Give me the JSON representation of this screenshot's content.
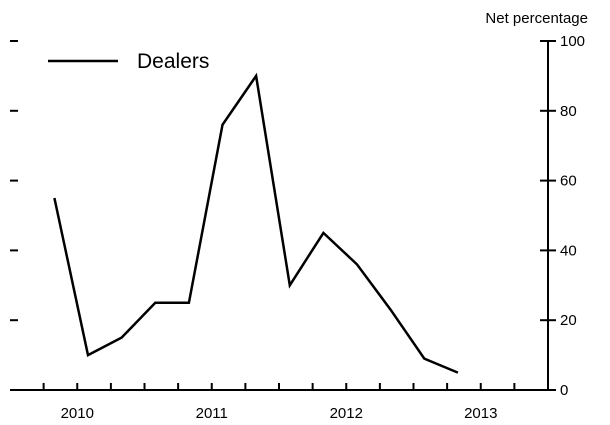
{
  "chart_data": {
    "type": "line",
    "ylabel": "Net percentage",
    "ylim": [
      0,
      100
    ],
    "yticks": [
      0,
      20,
      40,
      60,
      80,
      100
    ],
    "xlim": [
      2009.5,
      2013.5
    ],
    "xticks_major": [
      2010,
      2011,
      2012,
      2013
    ],
    "xtick_labels": [
      "2010",
      "2011",
      "2012",
      "2013"
    ],
    "legend": {
      "position": "top-left",
      "entries": [
        "Dealers"
      ]
    },
    "grid": false,
    "series": [
      {
        "name": "Dealers",
        "color": "#000000",
        "x": [
          2009.83,
          2010.08,
          2010.33,
          2010.58,
          2010.83,
          2011.08,
          2011.33,
          2011.58,
          2011.83,
          2012.08,
          2012.33,
          2012.58,
          2012.83
        ],
        "y": [
          55,
          10,
          15,
          25,
          25,
          76,
          90,
          30,
          45,
          36,
          23,
          9,
          5
        ]
      }
    ]
  }
}
